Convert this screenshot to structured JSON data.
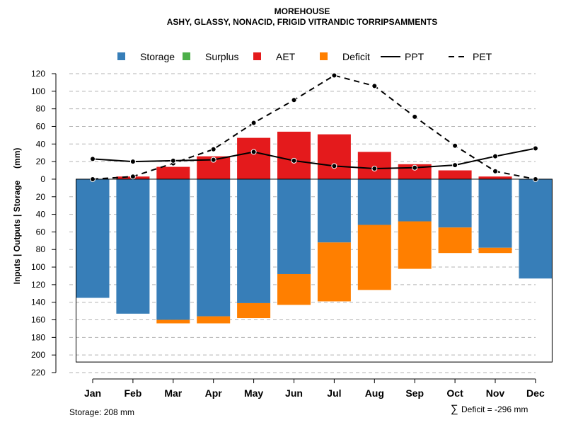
{
  "chart_data": {
    "type": "bar",
    "title": "MOREHOUSE",
    "subtitle": "ASHY, GLASSY, NONACID, FRIGID VITRANDIC TORRIPSAMMENTS",
    "ylabel": "Inputs | Outputs | Storage     (mm)",
    "ylim": [
      -220,
      120
    ],
    "yticks": [
      120,
      100,
      80,
      60,
      40,
      20,
      0,
      -20,
      -40,
      -60,
      -80,
      -100,
      -120,
      -140,
      -160,
      -180,
      -200,
      -220
    ],
    "ytick_labels": [
      "120",
      "100",
      "80",
      "60",
      "40",
      "20",
      "0",
      "20",
      "40",
      "60",
      "80",
      "100",
      "120",
      "140",
      "160",
      "180",
      "200",
      "220"
    ],
    "categories": [
      "Jan",
      "Feb",
      "Mar",
      "Apr",
      "May",
      "Jun",
      "Jul",
      "Aug",
      "Sep",
      "Oct",
      "Nov",
      "Dec"
    ],
    "legend": [
      {
        "label": "Storage",
        "kind": "box",
        "color": "#377EB8"
      },
      {
        "label": "Surplus",
        "kind": "box",
        "color": "#4DAF4A"
      },
      {
        "label": "AET",
        "kind": "box",
        "color": "#E41A1C"
      },
      {
        "label": "Deficit",
        "kind": "box",
        "color": "#FF7F00"
      },
      {
        "label": "PPT",
        "kind": "solid",
        "color": "#000000"
      },
      {
        "label": "PET",
        "kind": "dashed",
        "color": "#000000"
      }
    ],
    "series": [
      {
        "name": "Storage",
        "color": "#377EB8",
        "values": [
          -135,
          -153,
          -160,
          -156,
          -141,
          -108,
          -72,
          -52,
          -48,
          -55,
          -78,
          -113
        ]
      },
      {
        "name": "Surplus",
        "color": "#4DAF4A",
        "values": [
          0,
          0,
          0,
          0,
          0,
          0,
          0,
          0,
          0,
          0,
          0,
          0
        ]
      },
      {
        "name": "AET",
        "color": "#E41A1C",
        "values": [
          0,
          3,
          14,
          26,
          47,
          54,
          51,
          31,
          17,
          10,
          3,
          0
        ]
      },
      {
        "name": "Deficit",
        "color": "#FF7F00",
        "values": [
          0,
          0,
          -4,
          -8,
          -17,
          -35,
          -67,
          -74,
          -54,
          -29,
          -6,
          0
        ]
      },
      {
        "name": "PPT",
        "color": "#000000",
        "style": "solid",
        "values": [
          23,
          20,
          21,
          22,
          31,
          21,
          15,
          12,
          13,
          16,
          26,
          35
        ]
      },
      {
        "name": "PET",
        "color": "#000000",
        "style": "dashed",
        "values": [
          0,
          3,
          18,
          34,
          64,
          90,
          118,
          106,
          71,
          38,
          9,
          0
        ]
      }
    ],
    "storage_capacity": -208,
    "annotations": {
      "storage_text": "Storage: 208 mm",
      "deficit_symbol": "∑",
      "deficit_text": "Deficit = -296 mm"
    }
  }
}
